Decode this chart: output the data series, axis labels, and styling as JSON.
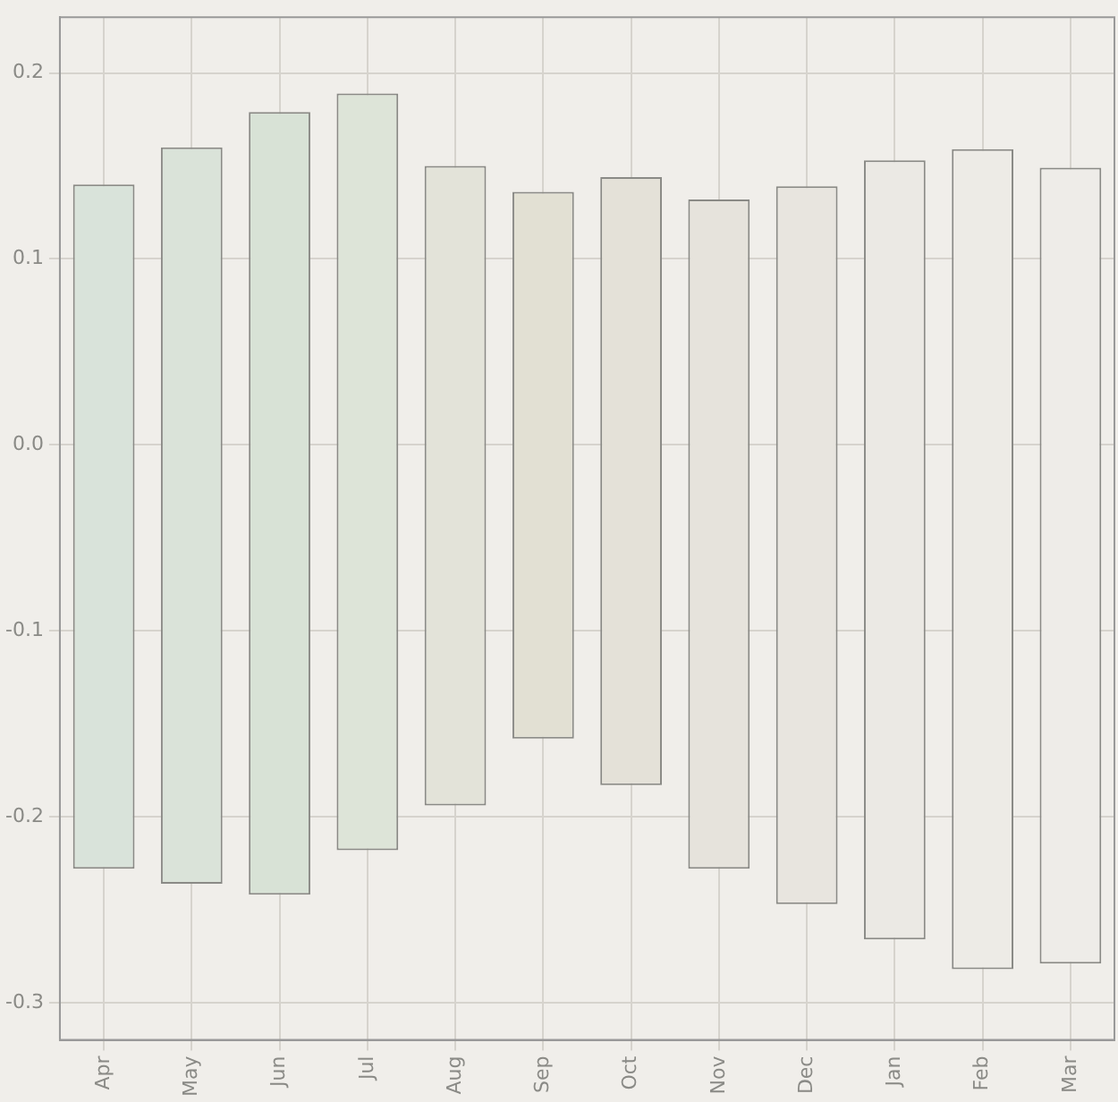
{
  "chart_data": {
    "type": "bar",
    "categories": [
      "Apr",
      "May",
      "Jun",
      "Jul",
      "Aug",
      "Sep",
      "Oct",
      "Nov",
      "Dec",
      "Jan",
      "Feb",
      "Mar"
    ],
    "base": [
      -0.228,
      -0.236,
      -0.242,
      -0.218,
      -0.194,
      -0.158,
      -0.183,
      -0.228,
      -0.247,
      -0.266,
      -0.282,
      -0.279
    ],
    "values": [
      0.368,
      0.396,
      0.421,
      0.407,
      0.344,
      0.294,
      0.327,
      0.36,
      0.386,
      0.419,
      0.441,
      0.428
    ],
    "colors": [
      "#d9e3da",
      "#dae3d9",
      "#d8e2d6",
      "#dde4d8",
      "#e3e3d9",
      "#e2e0d3",
      "#e4e1d8",
      "#e6e3dc",
      "#e8e5df",
      "#ebe9e4",
      "#edebe6",
      "#eeece8"
    ],
    "ylim": [
      -0.32,
      0.23
    ],
    "yticks": [
      -0.3,
      -0.2,
      -0.1,
      {
        "value": 0,
        "label": "0.0"
      },
      0.1,
      0.2
    ],
    "grid": true
  }
}
